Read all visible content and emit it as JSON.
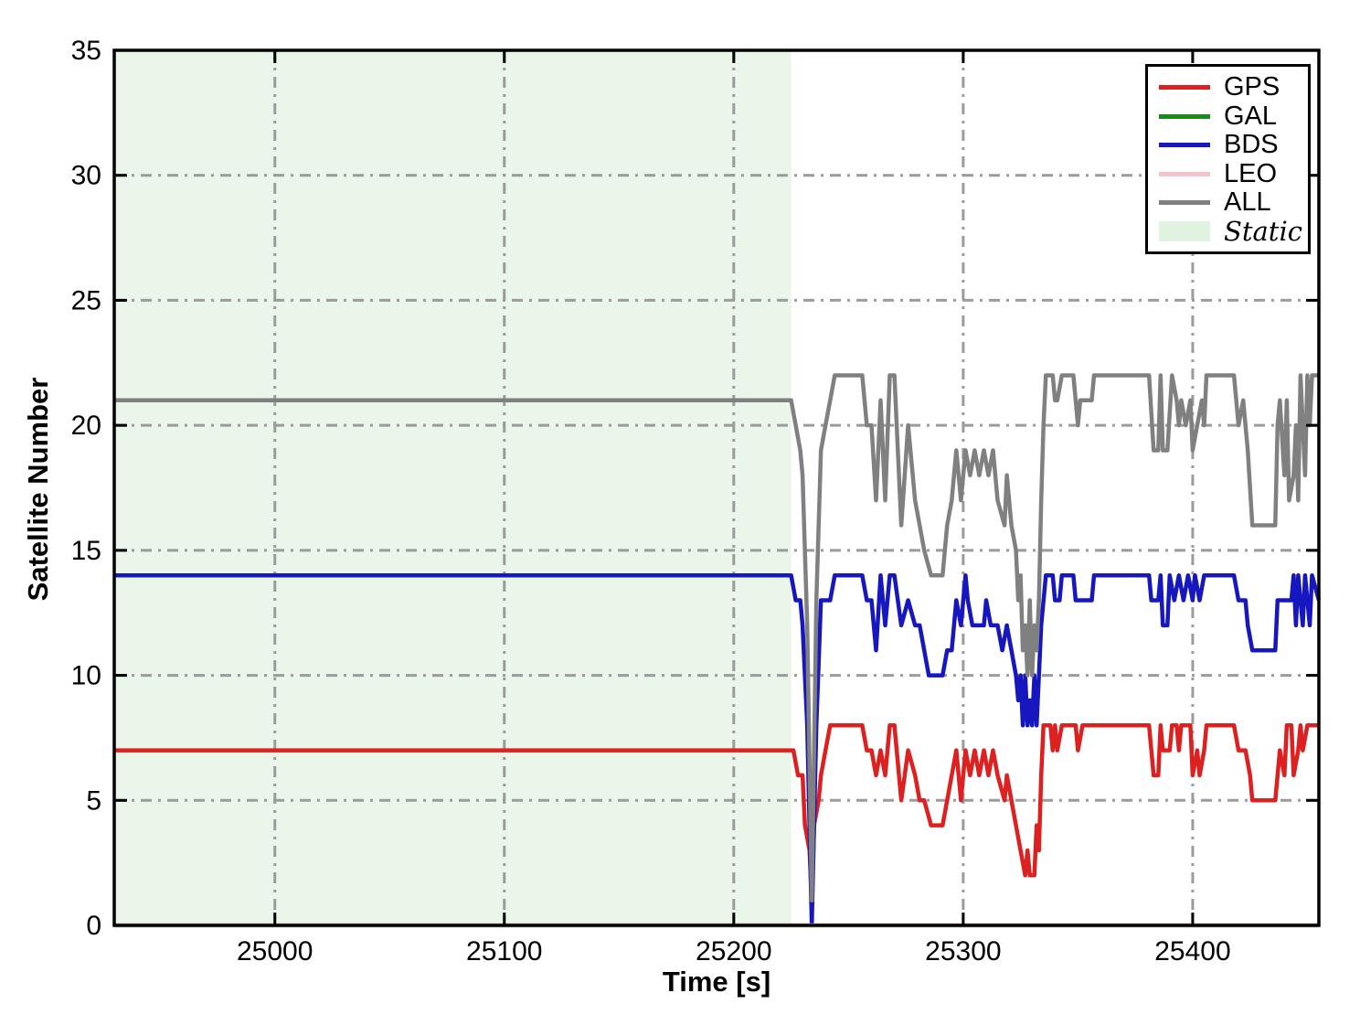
{
  "chart_data": {
    "type": "line",
    "title": "",
    "xlabel": "Time [s]",
    "ylabel": "Satellite Number",
    "xlim": [
      24930,
      25455
    ],
    "ylim": [
      0,
      35
    ],
    "x_ticks": [
      25000,
      25100,
      25200,
      25300,
      25400
    ],
    "y_ticks": [
      0,
      5,
      10,
      15,
      20,
      25,
      30,
      35
    ],
    "grid": {
      "style": "dash-dot",
      "color": "#9b9b9b"
    },
    "frame_color": "#000000",
    "legend_position": "upper right",
    "static_label": "Static",
    "static_region": {
      "label": "Static",
      "x_start": 24930,
      "x_end": 25225,
      "color": "#e9f6e9",
      "legend_color": "#e0f3e0"
    },
    "series": [
      {
        "name": "GPS",
        "color": "#dd2020",
        "points": [
          [
            24930,
            7
          ],
          [
            25226,
            7
          ],
          [
            25228,
            6
          ],
          [
            25230,
            6
          ],
          [
            25231,
            4
          ],
          [
            25233,
            3
          ],
          [
            25234,
            1
          ],
          [
            25235,
            4
          ],
          [
            25237,
            5
          ],
          [
            25238,
            6
          ],
          [
            25240,
            7
          ],
          [
            25242,
            8
          ],
          [
            25256,
            8
          ],
          [
            25258,
            7
          ],
          [
            25260,
            7
          ],
          [
            25262,
            6
          ],
          [
            25264,
            7
          ],
          [
            25266,
            6
          ],
          [
            25268,
            8
          ],
          [
            25270,
            8
          ],
          [
            25273,
            5
          ],
          [
            25276,
            7
          ],
          [
            25279,
            6
          ],
          [
            25281,
            5
          ],
          [
            25283,
            5
          ],
          [
            25286,
            4
          ],
          [
            25291,
            4
          ],
          [
            25293,
            5
          ],
          [
            25295,
            6
          ],
          [
            25297,
            7
          ],
          [
            25299,
            5
          ],
          [
            25301,
            7
          ],
          [
            25303,
            6
          ],
          [
            25305,
            7
          ],
          [
            25307,
            6
          ],
          [
            25309,
            7
          ],
          [
            25311,
            6
          ],
          [
            25313,
            7
          ],
          [
            25315,
            6
          ],
          [
            25318,
            5
          ],
          [
            25319,
            6
          ],
          [
            25321,
            5
          ],
          [
            25323,
            4
          ],
          [
            25325,
            3
          ],
          [
            25327,
            2
          ],
          [
            25328,
            3
          ],
          [
            25329,
            2
          ],
          [
            25331,
            2
          ],
          [
            25332,
            4
          ],
          [
            25333,
            3
          ],
          [
            25334,
            6
          ],
          [
            25335,
            8
          ],
          [
            25338,
            8
          ],
          [
            25339,
            7
          ],
          [
            25340,
            8
          ],
          [
            25341,
            7
          ],
          [
            25343,
            8
          ],
          [
            25349,
            8
          ],
          [
            25350,
            7
          ],
          [
            25352,
            8
          ],
          [
            25381,
            8
          ],
          [
            25383,
            6
          ],
          [
            25385,
            6
          ],
          [
            25386,
            8
          ],
          [
            25387,
            7
          ],
          [
            25390,
            7
          ],
          [
            25391,
            8
          ],
          [
            25393,
            8
          ],
          [
            25394,
            7
          ],
          [
            25395,
            8
          ],
          [
            25399,
            8
          ],
          [
            25400,
            6
          ],
          [
            25402,
            7
          ],
          [
            25403,
            6
          ],
          [
            25405,
            7
          ],
          [
            25406,
            8
          ],
          [
            25418,
            8
          ],
          [
            25420,
            7
          ],
          [
            25423,
            7
          ],
          [
            25425,
            6
          ],
          [
            25426,
            5
          ],
          [
            25436,
            5
          ],
          [
            25438,
            7
          ],
          [
            25440,
            6
          ],
          [
            25441,
            8
          ],
          [
            25443,
            8
          ],
          [
            25444,
            6
          ],
          [
            25446,
            7
          ],
          [
            25447,
            8
          ],
          [
            25448,
            7
          ],
          [
            25450,
            8
          ],
          [
            25455,
            8
          ]
        ]
      },
      {
        "name": "GAL",
        "color": "#188a18",
        "points": [
          [
            24930,
            0
          ],
          [
            25455,
            0
          ]
        ]
      },
      {
        "name": "BDS",
        "color": "#1717c0",
        "points": [
          [
            24930,
            14
          ],
          [
            25225,
            14
          ],
          [
            25227,
            13
          ],
          [
            25229,
            13
          ],
          [
            25230,
            12
          ],
          [
            25232,
            8
          ],
          [
            25234,
            0
          ],
          [
            25236,
            8
          ],
          [
            25238,
            13
          ],
          [
            25242,
            13
          ],
          [
            25244,
            14
          ],
          [
            25256,
            14
          ],
          [
            25258,
            13
          ],
          [
            25260,
            13
          ],
          [
            25262,
            11
          ],
          [
            25264,
            14
          ],
          [
            25266,
            12
          ],
          [
            25268,
            14
          ],
          [
            25270,
            14
          ],
          [
            25273,
            12
          ],
          [
            25276,
            13
          ],
          [
            25279,
            12
          ],
          [
            25281,
            12
          ],
          [
            25283,
            11
          ],
          [
            25285,
            10
          ],
          [
            25291,
            10
          ],
          [
            25293,
            11
          ],
          [
            25295,
            11
          ],
          [
            25296,
            12
          ],
          [
            25297,
            13
          ],
          [
            25299,
            12
          ],
          [
            25301,
            14
          ],
          [
            25302,
            13
          ],
          [
            25304,
            12
          ],
          [
            25309,
            12
          ],
          [
            25310,
            13
          ],
          [
            25312,
            12
          ],
          [
            25315,
            12
          ],
          [
            25317,
            11
          ],
          [
            25319,
            12
          ],
          [
            25321,
            11
          ],
          [
            25323,
            10
          ],
          [
            25324,
            9
          ],
          [
            25325,
            10
          ],
          [
            25326,
            8
          ],
          [
            25327,
            10
          ],
          [
            25328,
            8
          ],
          [
            25329,
            9
          ],
          [
            25330,
            8
          ],
          [
            25331,
            10
          ],
          [
            25332,
            8
          ],
          [
            25333,
            10
          ],
          [
            25334,
            12
          ],
          [
            25336,
            14
          ],
          [
            25339,
            14
          ],
          [
            25340,
            13
          ],
          [
            25342,
            13
          ],
          [
            25343,
            14
          ],
          [
            25348,
            14
          ],
          [
            25349,
            13
          ],
          [
            25356,
            13
          ],
          [
            25357,
            14
          ],
          [
            25381,
            14
          ],
          [
            25382,
            13
          ],
          [
            25385,
            13
          ],
          [
            25386,
            14
          ],
          [
            25387,
            12
          ],
          [
            25389,
            12
          ],
          [
            25390,
            14
          ],
          [
            25392,
            13
          ],
          [
            25394,
            14
          ],
          [
            25396,
            13
          ],
          [
            25398,
            14
          ],
          [
            25400,
            13
          ],
          [
            25401,
            14
          ],
          [
            25403,
            13
          ],
          [
            25405,
            14
          ],
          [
            25418,
            14
          ],
          [
            25420,
            13
          ],
          [
            25423,
            13
          ],
          [
            25424,
            12
          ],
          [
            25426,
            11
          ],
          [
            25436,
            11
          ],
          [
            25437,
            13
          ],
          [
            25443,
            13
          ],
          [
            25444,
            14
          ],
          [
            25445,
            12
          ],
          [
            25446,
            14
          ],
          [
            25448,
            12
          ],
          [
            25449,
            14
          ],
          [
            25451,
            12
          ],
          [
            25452,
            14
          ],
          [
            25455,
            13
          ]
        ]
      },
      {
        "name": "LEO",
        "color": "#f6c3cb",
        "points": [
          [
            24930,
            0
          ],
          [
            25455,
            0
          ]
        ]
      },
      {
        "name": "ALL",
        "color": "#808080",
        "points": [
          [
            24930,
            21
          ],
          [
            25225,
            21
          ],
          [
            25227,
            20
          ],
          [
            25229,
            19
          ],
          [
            25230,
            18
          ],
          [
            25232,
            12
          ],
          [
            25234,
            1
          ],
          [
            25236,
            13
          ],
          [
            25238,
            19
          ],
          [
            25240,
            20
          ],
          [
            25242,
            21
          ],
          [
            25244,
            22
          ],
          [
            25256,
            22
          ],
          [
            25258,
            20
          ],
          [
            25260,
            20
          ],
          [
            25262,
            17
          ],
          [
            25264,
            21
          ],
          [
            25266,
            17
          ],
          [
            25268,
            22
          ],
          [
            25270,
            22
          ],
          [
            25273,
            16
          ],
          [
            25276,
            20
          ],
          [
            25279,
            17
          ],
          [
            25281,
            16
          ],
          [
            25283,
            15
          ],
          [
            25286,
            14
          ],
          [
            25291,
            14
          ],
          [
            25293,
            16
          ],
          [
            25295,
            17
          ],
          [
            25297,
            19
          ],
          [
            25299,
            17
          ],
          [
            25301,
            19
          ],
          [
            25303,
            18
          ],
          [
            25305,
            19
          ],
          [
            25307,
            18
          ],
          [
            25309,
            19
          ],
          [
            25311,
            18
          ],
          [
            25313,
            19
          ],
          [
            25315,
            17
          ],
          [
            25318,
            16
          ],
          [
            25319,
            18
          ],
          [
            25321,
            16
          ],
          [
            25323,
            15
          ],
          [
            25324,
            13
          ],
          [
            25325,
            14
          ],
          [
            25326,
            11
          ],
          [
            25327,
            12
          ],
          [
            25328,
            10
          ],
          [
            25329,
            13
          ],
          [
            25330,
            10
          ],
          [
            25331,
            12
          ],
          [
            25332,
            11
          ],
          [
            25333,
            13
          ],
          [
            25334,
            17
          ],
          [
            25335,
            20
          ],
          [
            25336,
            22
          ],
          [
            25339,
            22
          ],
          [
            25340,
            21
          ],
          [
            25341,
            21
          ],
          [
            25343,
            22
          ],
          [
            25348,
            22
          ],
          [
            25349,
            21
          ],
          [
            25350,
            20
          ],
          [
            25351,
            21
          ],
          [
            25356,
            21
          ],
          [
            25357,
            22
          ],
          [
            25381,
            22
          ],
          [
            25383,
            19
          ],
          [
            25385,
            19
          ],
          [
            25386,
            22
          ],
          [
            25387,
            19
          ],
          [
            25389,
            19
          ],
          [
            25391,
            22
          ],
          [
            25393,
            21
          ],
          [
            25394,
            20
          ],
          [
            25395,
            21
          ],
          [
            25397,
            20
          ],
          [
            25399,
            21
          ],
          [
            25400,
            19
          ],
          [
            25402,
            20
          ],
          [
            25404,
            21
          ],
          [
            25405,
            20
          ],
          [
            25406,
            22
          ],
          [
            25418,
            22
          ],
          [
            25420,
            20
          ],
          [
            25422,
            21
          ],
          [
            25424,
            19
          ],
          [
            25426,
            16
          ],
          [
            25436,
            16
          ],
          [
            25437,
            20
          ],
          [
            25438,
            21
          ],
          [
            25440,
            18
          ],
          [
            25441,
            21
          ],
          [
            25442,
            17
          ],
          [
            25444,
            18
          ],
          [
            25445,
            20
          ],
          [
            25446,
            17
          ],
          [
            25447,
            22
          ],
          [
            25449,
            18
          ],
          [
            25450,
            22
          ],
          [
            25451,
            20
          ],
          [
            25452,
            22
          ],
          [
            25455,
            22
          ]
        ]
      }
    ]
  }
}
